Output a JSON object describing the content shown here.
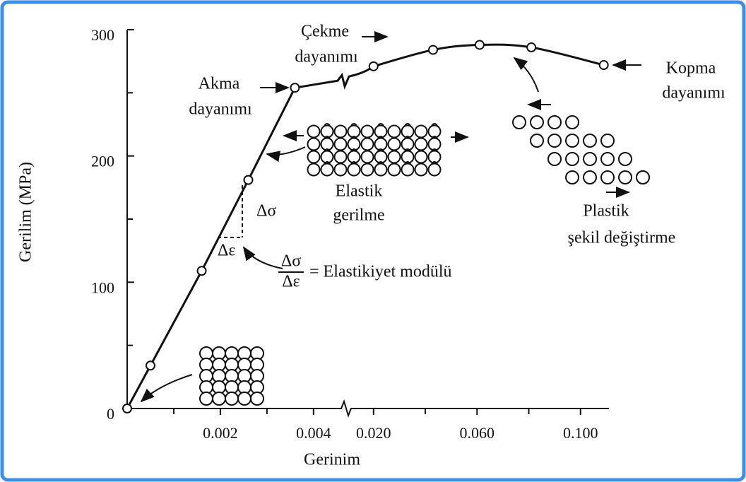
{
  "chart_data": {
    "type": "line",
    "x_label": "Gerinim",
    "y_label": "Gerilim (MPa)",
    "ylim": [
      0,
      300
    ],
    "yticks": [
      0,
      100,
      200,
      300
    ],
    "yminor": [
      50,
      150,
      250
    ],
    "xlim": [
      0,
      0.0047
    ],
    "xticks": [
      0.002,
      0.004
    ],
    "xminor": [
      0.001,
      0.003
    ],
    "x2lim": [
      0.0135,
      0.111
    ],
    "x2ticks": [
      {
        "value": 0.02,
        "label": "0.020"
      },
      {
        "value": 0.06,
        "label": "0.060"
      },
      {
        "value": 0.1,
        "label": "0.100"
      }
    ],
    "x2minor": [
      0.04,
      0.08
    ],
    "color": "#111111",
    "series": [
      {
        "x": [
          0,
          0.0005,
          0.0016,
          0.0026,
          0.0036
        ],
        "values": [
          0,
          34,
          109,
          181,
          254
        ]
      },
      {
        "axis": "x2",
        "x": [
          0.02,
          0.043,
          0.061,
          0.081,
          0.109
        ],
        "values": [
          271,
          284,
          288,
          286,
          272
        ]
      }
    ],
    "annotations": {
      "tensile": [
        "Çekme",
        "dayanımı"
      ],
      "yield": [
        "Akma",
        "dayanımı"
      ],
      "fracture": [
        "Kopma",
        "dayanımı"
      ],
      "elastic": [
        "Elastik",
        "gerilme"
      ],
      "plastic": [
        "Plastik",
        "şekil değiştirme"
      ],
      "d_sigma": "Δσ",
      "d_eps": "Δε",
      "modulus": {
        "numerator": "Δσ",
        "denominator": "Δε",
        "text": "= Elastikiyet modülü"
      }
    }
  }
}
